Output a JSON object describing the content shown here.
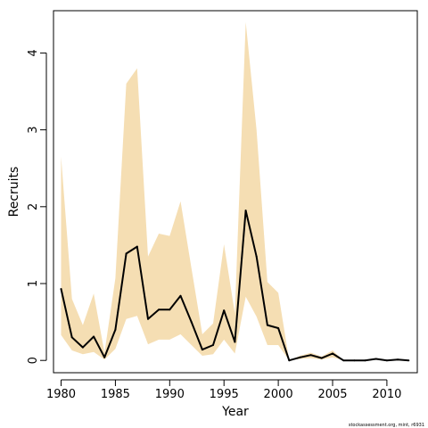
{
  "chart_data": {
    "type": "area",
    "title": "",
    "xlabel": "Year",
    "ylabel": "Recruits",
    "xlim": [
      1979.3,
      2012.8
    ],
    "ylim": [
      -0.16,
      4.55
    ],
    "x_ticks": [
      1980,
      1985,
      1990,
      1995,
      2000,
      2005,
      2010
    ],
    "x_tick_labels": [
      "1980",
      "1985",
      "1990",
      "1995",
      "2000",
      "2005",
      "2010"
    ],
    "y_ticks": [
      0,
      1,
      2,
      3,
      4
    ],
    "y_tick_labels": [
      "0",
      "1",
      "2",
      "3",
      "4"
    ],
    "grid": false,
    "legend": "none",
    "x": [
      1980,
      1981,
      1982,
      1983,
      1984,
      1985,
      1986,
      1987,
      1988,
      1989,
      1990,
      1991,
      1992,
      1993,
      1994,
      1995,
      1996,
      1997,
      1998,
      1999,
      2000,
      2001,
      2002,
      2003,
      2004,
      2005,
      2006,
      2007,
      2008,
      2009,
      2010,
      2011,
      2012
    ],
    "series": [
      {
        "type": "line",
        "values": [
          0.93,
          0.3,
          0.17,
          0.31,
          0.04,
          0.4,
          1.39,
          1.48,
          0.54,
          0.66,
          0.66,
          0.84,
          0.5,
          0.14,
          0.2,
          0.65,
          0.24,
          1.95,
          1.35,
          0.46,
          0.42,
          0.0,
          0.04,
          0.07,
          0.03,
          0.09,
          0.0,
          0.0,
          0.0,
          0.02,
          0.0,
          0.01,
          0.0
        ]
      },
      {
        "type": "band",
        "lower": [
          0.33,
          0.13,
          0.08,
          0.11,
          0.01,
          0.15,
          0.54,
          0.58,
          0.21,
          0.27,
          0.27,
          0.34,
          0.2,
          0.06,
          0.08,
          0.27,
          0.09,
          0.83,
          0.57,
          0.2,
          0.2,
          0.0,
          0.02,
          0.03,
          0.01,
          0.04,
          0.0,
          0.0,
          0.0,
          0.01,
          0.0,
          0.0,
          0.0
        ],
        "upper": [
          2.65,
          0.8,
          0.46,
          0.87,
          0.1,
          1.07,
          3.6,
          3.8,
          1.35,
          1.65,
          1.62,
          2.07,
          1.2,
          0.34,
          0.48,
          1.51,
          0.61,
          4.4,
          3.0,
          1.02,
          0.88,
          0.0,
          0.06,
          0.1,
          0.05,
          0.13,
          0.0,
          0.0,
          0.0,
          0.03,
          0.0,
          0.01,
          0.0
        ]
      }
    ],
    "colors": {
      "band": "#f5deb3",
      "line": "#000000",
      "axes": "#000000"
    },
    "footer": "stockassessment.org, mint, r6931"
  }
}
